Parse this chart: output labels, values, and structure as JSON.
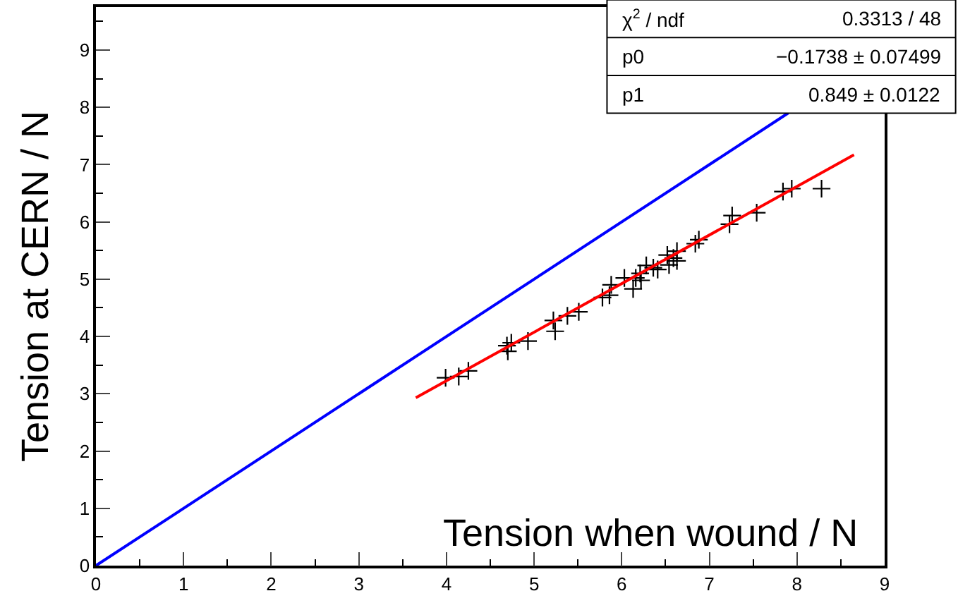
{
  "chart_data": {
    "type": "scatter",
    "xlabel": "Tension when wound / N",
    "ylabel": "Tension at CERN / N",
    "xlim": [
      0,
      9
    ],
    "ylim": [
      0,
      9.75
    ],
    "xticks": [
      0,
      1,
      2,
      3,
      4,
      5,
      6,
      7,
      8,
      9
    ],
    "yticks": [
      0,
      1,
      2,
      3,
      4,
      5,
      6,
      7,
      8,
      9
    ],
    "series": [
      {
        "marker": "cross",
        "color": "#000000",
        "x": [
          3.99,
          4.14,
          4.25,
          4.69,
          4.7,
          4.74,
          4.93,
          5.22,
          5.24,
          5.38,
          5.51,
          5.78,
          5.86,
          5.88,
          6.03,
          6.13,
          6.16,
          6.21,
          6.22,
          6.28,
          6.36,
          6.41,
          6.52,
          6.54,
          6.59,
          6.63,
          6.63,
          6.84,
          6.88,
          7.23,
          7.26,
          7.54,
          7.84,
          7.94,
          8.28
        ],
        "values": [
          3.28,
          3.3,
          3.4,
          3.84,
          3.74,
          3.89,
          3.92,
          4.28,
          4.09,
          4.36,
          4.43,
          4.68,
          4.72,
          4.9,
          5.02,
          4.83,
          5.02,
          5.1,
          4.98,
          5.24,
          5.2,
          5.17,
          5.42,
          5.25,
          5.37,
          5.49,
          5.32,
          5.62,
          5.69,
          5.96,
          6.11,
          6.16,
          6.53,
          6.58,
          6.58
        ]
      },
      {
        "type": "line",
        "color": "#ff0000",
        "x": [
          3.65,
          8.65
        ],
        "values": [
          2.93,
          7.17
        ]
      },
      {
        "type": "line",
        "color": "#0000ff",
        "x": [
          0,
          7.9
        ],
        "values": [
          0,
          7.9
        ]
      }
    ],
    "annotations": [
      "χ$^{2}$ / ndf",
      "0.3313 / 48",
      "p0",
      "−0.1738 ± 0.07499",
      "p1",
      "0.849 ± 0.0122"
    ]
  }
}
